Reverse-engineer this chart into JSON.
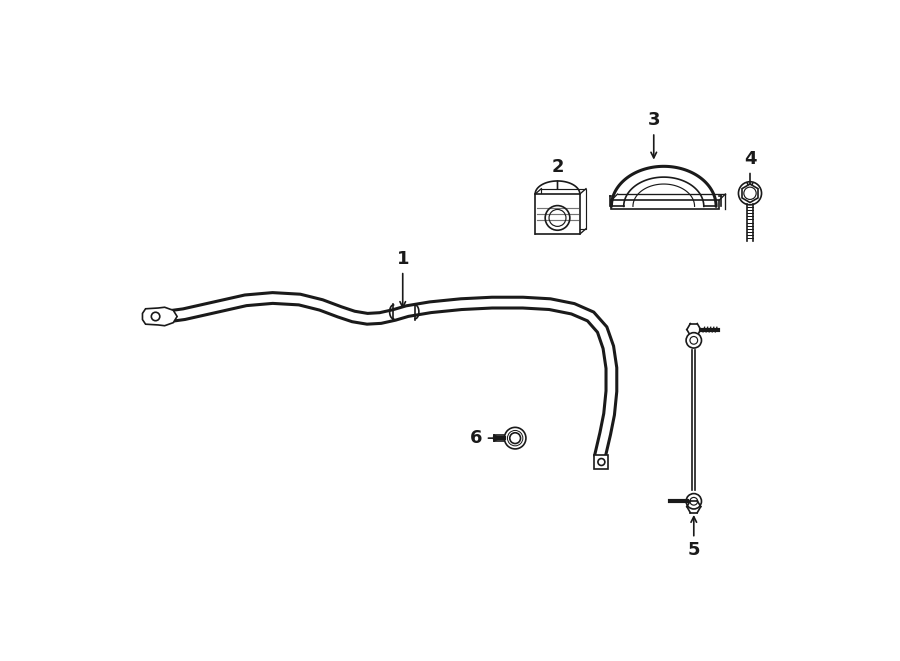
{
  "background_color": "#ffffff",
  "line_color": "#1a1a1a",
  "figsize": [
    9.0,
    6.61
  ],
  "dpi": 100,
  "bar_lw": 2.2,
  "thin_lw": 1.2,
  "label_fontsize": 13
}
